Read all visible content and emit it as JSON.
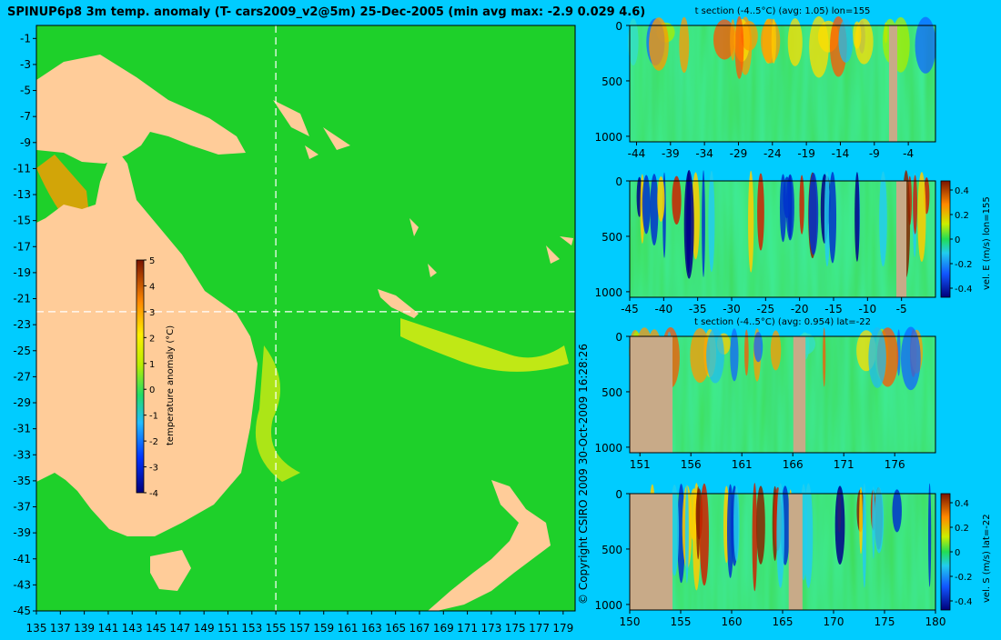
{
  "title": "SPINUP6p8 3m temp. anomaly (T- cars2009_v2@5m) 25-Dec-2005 (min avg max: -2.9 0.029 4.6)",
  "copyright": "© Copyright CSIRO 2009   30-Oct-2009 16:28:26",
  "colors": {
    "background": "#00ccff",
    "land": "#ffcc99",
    "ocean_base": "#1ed02a",
    "section_land": "#c8aa88"
  },
  "chart_data": [
    {
      "type": "heatmap",
      "id": "map",
      "title": "",
      "xlabel": "",
      "ylabel": "",
      "xlim": [
        135,
        180
      ],
      "ylim": [
        -45,
        0
      ],
      "x_ticks": [
        135,
        137,
        139,
        141,
        143,
        145,
        147,
        149,
        151,
        153,
        155,
        157,
        159,
        161,
        163,
        165,
        167,
        169,
        171,
        173,
        175,
        177,
        179
      ],
      "y_ticks": [
        -1,
        -3,
        -5,
        -7,
        -9,
        -11,
        -13,
        -15,
        -17,
        -19,
        -21,
        -23,
        -25,
        -27,
        -29,
        -31,
        -33,
        -35,
        -37,
        -39,
        -41,
        -43,
        -45
      ],
      "section_lon": 155,
      "section_lat": -22,
      "colorbar": {
        "label": "temperature anomaly (°C)",
        "ticks": [
          5,
          4,
          3,
          2,
          1,
          0,
          -1,
          -2,
          -3,
          -4
        ],
        "range": [
          -4,
          5
        ]
      }
    },
    {
      "type": "heatmap",
      "id": "t-lon",
      "title": "t section (-4..5°C) (avg: 1.05) lon=155",
      "xlim": [
        -45,
        0
      ],
      "ylim": [
        0,
        1050
      ],
      "x_ticks": [
        -44,
        -39,
        -34,
        -29,
        -24,
        -19,
        -14,
        -9,
        -4
      ],
      "y_ticks": [
        0,
        500,
        1000
      ]
    },
    {
      "type": "heatmap",
      "id": "u-lon",
      "title": "",
      "xlim": [
        -45,
        0
      ],
      "ylim": [
        0,
        1050
      ],
      "x_ticks": [
        -45,
        -40,
        -35,
        -30,
        -25,
        -20,
        -15,
        -10,
        -5
      ],
      "y_ticks": [
        0,
        500,
        1000
      ],
      "colorbar": {
        "label": "vel. E (m/s) lon=155",
        "ticks": [
          "0.4",
          "0.2",
          "0",
          "-0.2",
          "-0.4"
        ]
      }
    },
    {
      "type": "heatmap",
      "id": "t-lat",
      "title": "t section (-4..5°C) (avg: 0.954) lat=-22",
      "xlim": [
        150,
        180
      ],
      "ylim": [
        0,
        1050
      ],
      "x_ticks": [
        151,
        156,
        161,
        166,
        171,
        176
      ],
      "y_ticks": [
        0,
        500,
        1000
      ]
    },
    {
      "type": "heatmap",
      "id": "v-lat",
      "title": "",
      "xlim": [
        150,
        180
      ],
      "ylim": [
        0,
        1050
      ],
      "x_ticks": [
        150,
        155,
        160,
        165,
        170,
        175,
        180
      ],
      "y_ticks": [
        0,
        500,
        1000
      ],
      "colorbar": {
        "label": "vel. S (m/s) lat=-22",
        "ticks": [
          "0.4",
          "0.2",
          "0",
          "-0.2",
          "-0.4"
        ]
      }
    }
  ]
}
